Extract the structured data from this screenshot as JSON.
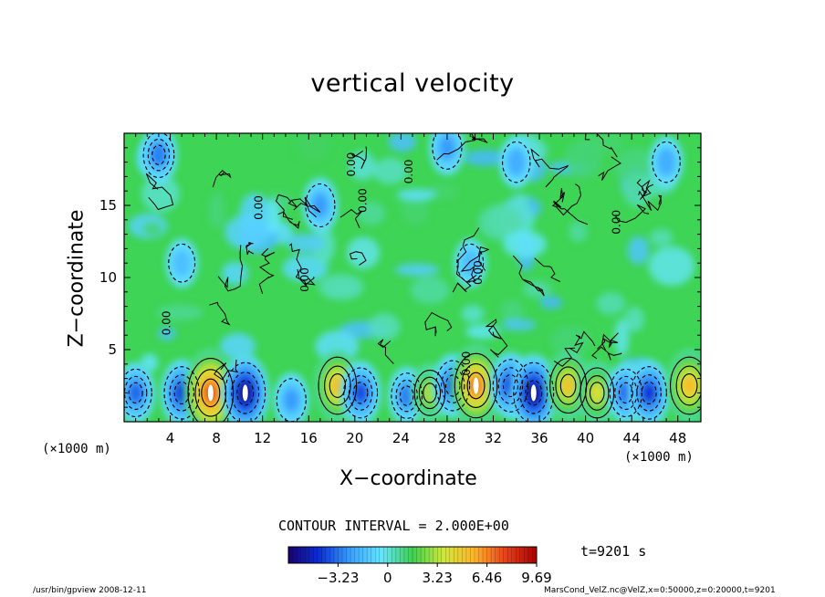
{
  "chart_data": {
    "type": "heatmap",
    "title": "vertical velocity",
    "xlabel": "X−coordinate",
    "ylabel": "Z−coordinate",
    "x_unit": "(×1000 m)",
    "xlim": [
      0,
      50
    ],
    "ylim": [
      0,
      20
    ],
    "x_ticks": [
      4,
      8,
      12,
      16,
      20,
      24,
      28,
      32,
      36,
      40,
      44,
      48
    ],
    "y_ticks": [
      5,
      10,
      15
    ],
    "contour_interval": "CONTOUR INTERVAL = 2.000E+00",
    "colorbar": {
      "range": [
        -6.46,
        9.69
      ],
      "tick_values": [
        -3.23,
        0,
        3.23,
        6.46,
        9.69
      ],
      "tick_labels": [
        "−3.23",
        "0",
        "3.23",
        "6.46",
        "9.69"
      ],
      "colors": [
        "#1a0070",
        "#0a2fd6",
        "#3aa0ff",
        "#64e6ff",
        "#3ecf50",
        "#cfe83a",
        "#ffb42a",
        "#e8401c",
        "#a80000",
        "#ffffff"
      ]
    },
    "contour_label": "0.00",
    "features": [
      {
        "x": 1.0,
        "z": 2.0,
        "value": -3.5
      },
      {
        "x": 5.0,
        "z": 2.0,
        "value": -4.5
      },
      {
        "x": 7.5,
        "z": 2.0,
        "value": 8.0
      },
      {
        "x": 10.5,
        "z": 2.0,
        "value": -6.2
      },
      {
        "x": 14.5,
        "z": 1.5,
        "value": -2.5
      },
      {
        "x": 18.5,
        "z": 2.5,
        "value": 5.5
      },
      {
        "x": 20.5,
        "z": 2.0,
        "value": -4.0
      },
      {
        "x": 24.5,
        "z": 1.8,
        "value": -3.0
      },
      {
        "x": 26.5,
        "z": 2.0,
        "value": 3.0
      },
      {
        "x": 28.5,
        "z": 2.5,
        "value": -4.0
      },
      {
        "x": 30.5,
        "z": 2.5,
        "value": 7.0
      },
      {
        "x": 33.5,
        "z": 2.5,
        "value": -4.5
      },
      {
        "x": 35.5,
        "z": 2.0,
        "value": -6.2
      },
      {
        "x": 38.5,
        "z": 2.5,
        "value": 5.0
      },
      {
        "x": 41.0,
        "z": 2.0,
        "value": 4.0
      },
      {
        "x": 43.5,
        "z": 2.0,
        "value": -3.5
      },
      {
        "x": 45.5,
        "z": 2.0,
        "value": -4.5
      },
      {
        "x": 49.0,
        "z": 2.5,
        "value": 5.5
      },
      {
        "x": 3.0,
        "z": 18.5,
        "value": -3.0
      },
      {
        "x": 17.0,
        "z": 15.0,
        "value": -2.5
      },
      {
        "x": 28.0,
        "z": 19.0,
        "value": -2.5
      },
      {
        "x": 34.0,
        "z": 18.0,
        "value": -2.0
      },
      {
        "x": 47.0,
        "z": 18.0,
        "value": -2.0
      },
      {
        "x": 5.0,
        "z": 11.0,
        "value": -1.5
      },
      {
        "x": 30.0,
        "z": 11.0,
        "value": -1.5
      }
    ],
    "time": "t=9201 s"
  },
  "footer": {
    "left": "/usr/bin/gpview   2008-12-11",
    "right": "MarsCond_VelZ.nc@VelZ,x=0:50000,z=0:20000,t=9201"
  }
}
